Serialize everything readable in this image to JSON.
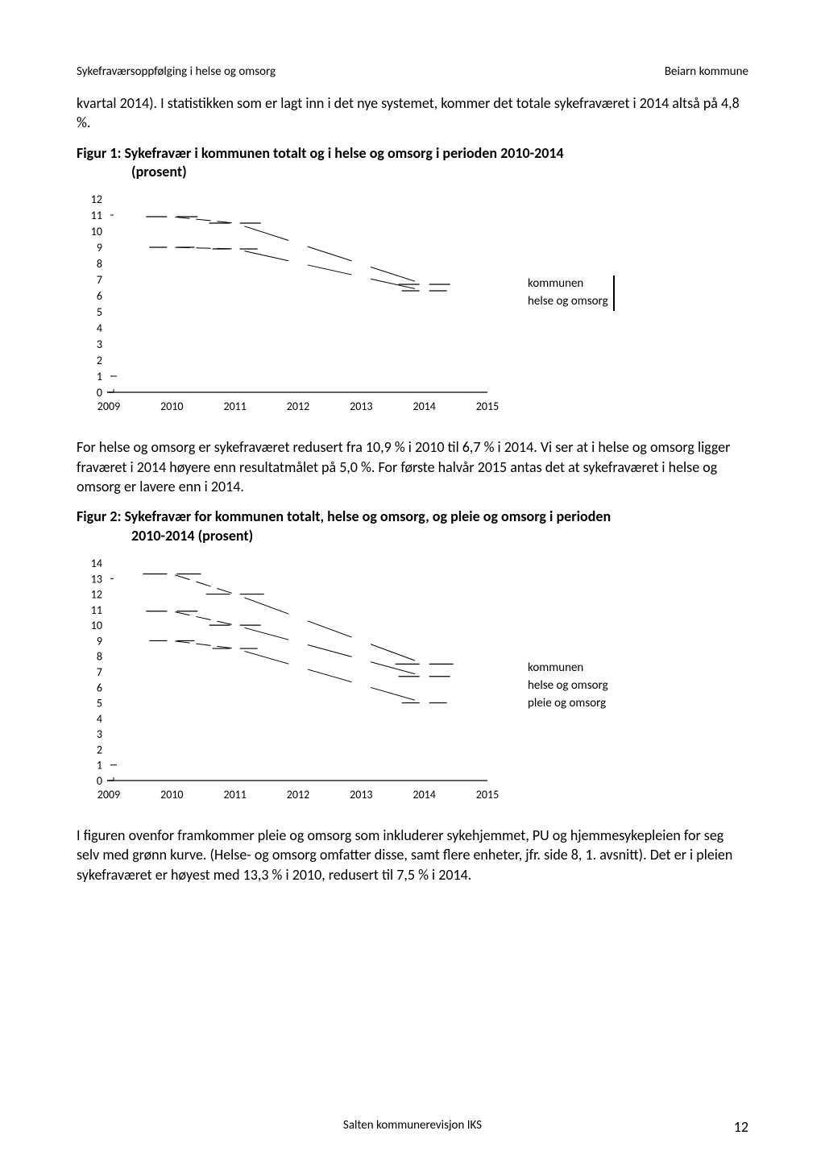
{
  "header": {
    "left": "Sykefraværsoppfølging i helse og omsorg",
    "right": "Beiarn kommune"
  },
  "para1": "kvartal 2014). I statistikken som er lagt inn i det nye systemet, kommer det totale sykefraværet i 2014 altså på 4,8 %.",
  "figure1": {
    "title_lead": "Figur 1: Sykefravær i kommunen totalt og i helse og omsorg i perioden 2010-2014",
    "title_sub": "(prosent)",
    "type": "line-sketch",
    "years": [
      "2009",
      "2010",
      "2011",
      "2012",
      "2013",
      "2014",
      "2015"
    ],
    "y_ticks": [
      0,
      1,
      2,
      3,
      4,
      5,
      6,
      7,
      8,
      9,
      10,
      11,
      12
    ],
    "ylim": [
      0,
      12
    ],
    "legend": {
      "items": [
        "kommunen",
        "helse og omsorg"
      ]
    },
    "series": {
      "kommunen_est": [
        null,
        9.0,
        8.9,
        null,
        null,
        6.3,
        null
      ],
      "helse_est": [
        null,
        10.9,
        10.5,
        null,
        null,
        6.7,
        null
      ]
    },
    "axis_fontsize": 14,
    "legend_fontsize": 15,
    "line_color": "#000000",
    "background": "#ffffff"
  },
  "para2": "For helse og omsorg er sykefraværet redusert fra 10,9 % i 2010 til 6,7 % i 2014. Vi ser at i helse og omsorg ligger fraværet i 2014 høyere enn resultatmålet på 5,0 %. For første halvår 2015 antas det at sykefraværet i helse og omsorg er lavere enn i 2014.",
  "figure2": {
    "title_lead": "Figur 2: Sykefravær for kommunen totalt, helse og omsorg, og pleie og omsorg i perioden",
    "title_sub": "2010-2014 (prosent)",
    "type": "line-sketch",
    "years": [
      "2009",
      "2010",
      "2011",
      "2012",
      "2013",
      "2014",
      "2015"
    ],
    "y_ticks": [
      0,
      1,
      2,
      3,
      4,
      5,
      6,
      7,
      8,
      9,
      10,
      11,
      12,
      13,
      14
    ],
    "ylim": [
      0,
      14
    ],
    "legend": {
      "items": [
        "kommunen",
        "helse og omsorg",
        "pleie og omsorg"
      ]
    },
    "series": {
      "kommunen_est": [
        null,
        9.0,
        8.5,
        null,
        null,
        5.0,
        null
      ],
      "helse_est": [
        null,
        10.9,
        10.0,
        null,
        null,
        6.7,
        null
      ],
      "pleie_est": [
        null,
        13.3,
        12.0,
        null,
        null,
        7.5,
        null
      ]
    },
    "axis_fontsize": 14,
    "legend_fontsize": 15,
    "line_color": "#000000",
    "background": "#ffffff"
  },
  "para3": "I figuren ovenfor framkommer pleie og omsorg som inkluderer sykehjemmet, PU og hjemmesykepleien for seg selv med grønn kurve. (Helse- og omsorg omfatter disse, samt flere enheter, jfr. side 8, 1. avsnitt). Det er i pleien sykefraværet er høyest med 13,3 % i 2010, redusert til 7,5 % i 2014.",
  "footer": {
    "center": "Salten kommunerevisjon IKS",
    "page": "12"
  }
}
